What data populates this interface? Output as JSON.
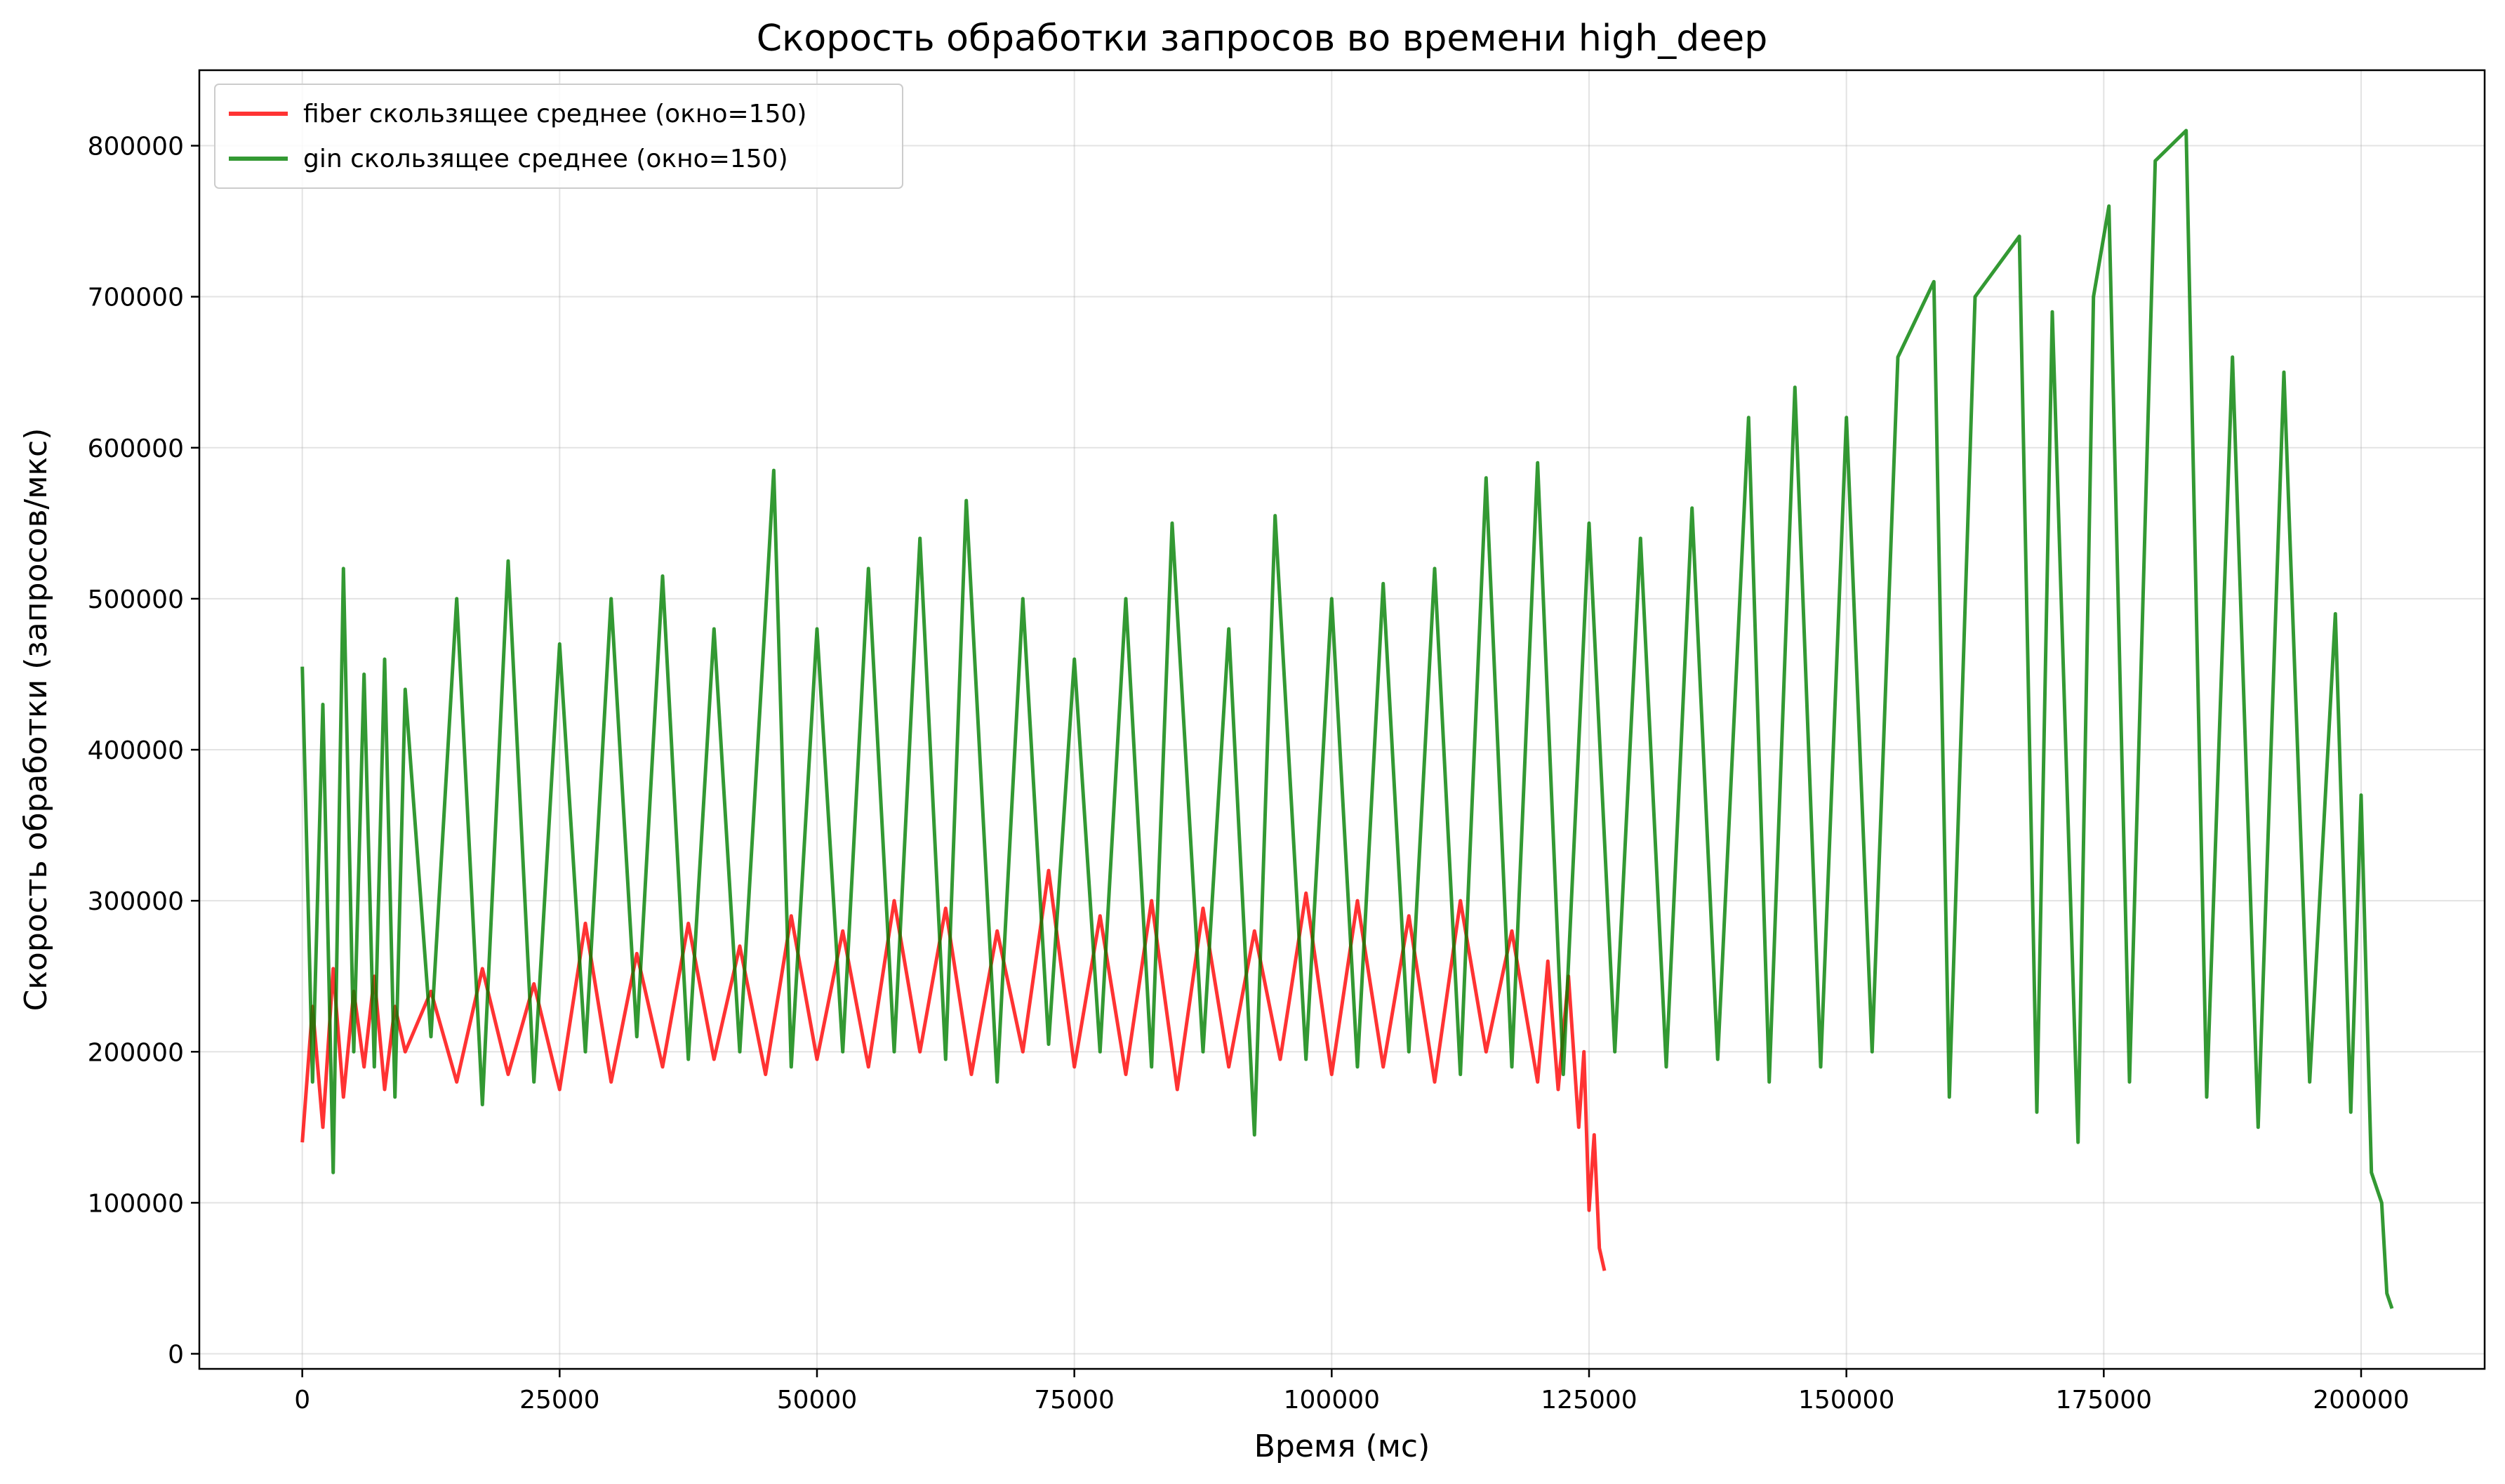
{
  "chart_data": {
    "type": "line",
    "title": "Скорость обработки запросов во времени high_deep",
    "xlabel": "Время (мс)",
    "ylabel": "Скорость обработки (запросов/мкс)",
    "xlim": [
      -10000,
      212000
    ],
    "ylim": [
      -10000,
      850000
    ],
    "xticks": [
      0,
      25000,
      50000,
      75000,
      100000,
      125000,
      150000,
      175000,
      200000
    ],
    "xtick_labels": [
      "0",
      "25000",
      "50000",
      "75000",
      "100000",
      "125000",
      "150000",
      "175000",
      "200000"
    ],
    "yticks": [
      0,
      100000,
      200000,
      300000,
      400000,
      500000,
      600000,
      700000,
      800000
    ],
    "ytick_labels": [
      "0",
      "100000",
      "200000",
      "300000",
      "400000",
      "500000",
      "600000",
      "700000",
      "800000"
    ],
    "grid": true,
    "legend_position": "top-left",
    "series": [
      {
        "name": "fiber скользящее среднее (окно=150)",
        "color": "#ff0000",
        "x": [
          0,
          1000,
          2000,
          3000,
          4000,
          5000,
          6000,
          7000,
          8000,
          9000,
          10000,
          12500,
          15000,
          17500,
          20000,
          22500,
          25000,
          27500,
          30000,
          32500,
          35000,
          37500,
          40000,
          42500,
          45000,
          47500,
          50000,
          52500,
          55000,
          57500,
          60000,
          62500,
          65000,
          67500,
          70000,
          72500,
          75000,
          77500,
          80000,
          82500,
          85000,
          87500,
          90000,
          92500,
          95000,
          97500,
          100000,
          102500,
          105000,
          107500,
          110000,
          112500,
          115000,
          117500,
          120000,
          121000,
          122000,
          123000,
          124000,
          124500,
          125000,
          125500,
          126000,
          126500
        ],
        "y": [
          140000,
          230000,
          150000,
          255000,
          170000,
          240000,
          190000,
          250000,
          175000,
          230000,
          200000,
          240000,
          180000,
          255000,
          185000,
          245000,
          175000,
          285000,
          180000,
          265000,
          190000,
          285000,
          195000,
          270000,
          185000,
          290000,
          195000,
          280000,
          190000,
          300000,
          200000,
          295000,
          185000,
          280000,
          200000,
          320000,
          190000,
          290000,
          185000,
          300000,
          175000,
          295000,
          190000,
          280000,
          195000,
          305000,
          185000,
          300000,
          190000,
          290000,
          180000,
          300000,
          200000,
          280000,
          180000,
          260000,
          175000,
          250000,
          150000,
          200000,
          95000,
          145000,
          70000,
          55000
        ]
      },
      {
        "name": "gin скользящее среднее (окно=150)",
        "color": "#008000",
        "x": [
          0,
          1000,
          2000,
          3000,
          4000,
          5000,
          6000,
          7000,
          8000,
          9000,
          10000,
          12500,
          15000,
          17500,
          20000,
          22500,
          25000,
          27500,
          30000,
          32500,
          35000,
          37500,
          40000,
          42500,
          45000,
          45800,
          47500,
          50000,
          52500,
          55000,
          57500,
          60000,
          62500,
          64500,
          67500,
          70000,
          72500,
          75000,
          77500,
          80000,
          82500,
          84500,
          87500,
          90000,
          92500,
          94500,
          97500,
          100000,
          102500,
          105000,
          107500,
          110000,
          112500,
          115000,
          117500,
          120000,
          122500,
          125000,
          127500,
          130000,
          132500,
          135000,
          137500,
          140500,
          142500,
          145000,
          147500,
          150000,
          152500,
          155000,
          158500,
          160000,
          162500,
          166800,
          168500,
          170000,
          172500,
          174000,
          175500,
          177500,
          180000,
          183000,
          185000,
          187500,
          190000,
          192500,
          195000,
          197500,
          199000,
          200000,
          201000,
          202000,
          202500,
          203000
        ],
        "y": [
          455000,
          180000,
          430000,
          120000,
          520000,
          200000,
          450000,
          190000,
          460000,
          170000,
          440000,
          210000,
          500000,
          165000,
          525000,
          180000,
          470000,
          200000,
          500000,
          210000,
          515000,
          195000,
          480000,
          200000,
          490000,
          585000,
          190000,
          480000,
          200000,
          520000,
          200000,
          540000,
          195000,
          565000,
          180000,
          500000,
          205000,
          460000,
          200000,
          500000,
          190000,
          550000,
          200000,
          480000,
          145000,
          555000,
          195000,
          500000,
          190000,
          510000,
          200000,
          520000,
          185000,
          580000,
          190000,
          590000,
          185000,
          550000,
          200000,
          540000,
          190000,
          560000,
          195000,
          620000,
          180000,
          640000,
          190000,
          620000,
          200000,
          660000,
          710000,
          170000,
          700000,
          740000,
          160000,
          690000,
          140000,
          700000,
          760000,
          180000,
          790000,
          810000,
          170000,
          660000,
          150000,
          650000,
          180000,
          490000,
          160000,
          370000,
          120000,
          100000,
          40000,
          30000
        ]
      }
    ]
  }
}
